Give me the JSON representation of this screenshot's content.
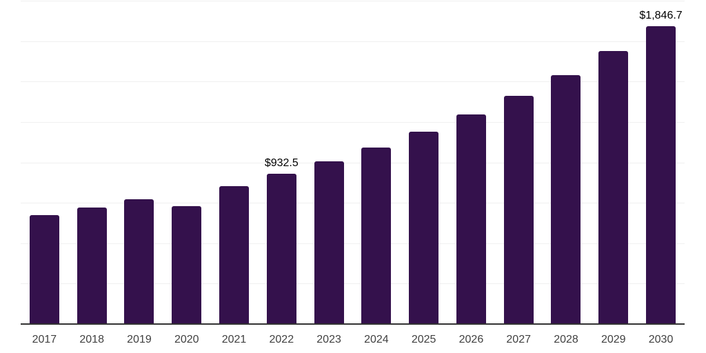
{
  "chart_data": {
    "type": "bar",
    "title": "",
    "xlabel": "",
    "ylabel": "",
    "categories": [
      "2017",
      "2018",
      "2019",
      "2020",
      "2021",
      "2022",
      "2023",
      "2024",
      "2025",
      "2026",
      "2027",
      "2028",
      "2029",
      "2030"
    ],
    "values": [
      680,
      726,
      778,
      735,
      856,
      932.5,
      1011,
      1097,
      1194,
      1300,
      1416,
      1544,
      1694,
      1846.7
    ],
    "labeled_points": [
      {
        "category": "2022",
        "label": "$932.5"
      },
      {
        "category": "2030",
        "label": "$1,846.7"
      }
    ],
    "ylim": [
      0,
      2000
    ],
    "gridline_interval": 250,
    "grid": true,
    "legend": false,
    "y_tick_labels_visible": false,
    "colors": {
      "bar": "#34114C",
      "gridline": "#f0f0f0",
      "axis_line": "#333333",
      "tick_label": "#414141",
      "data_label": "#000000",
      "background": "#ffffff"
    }
  }
}
